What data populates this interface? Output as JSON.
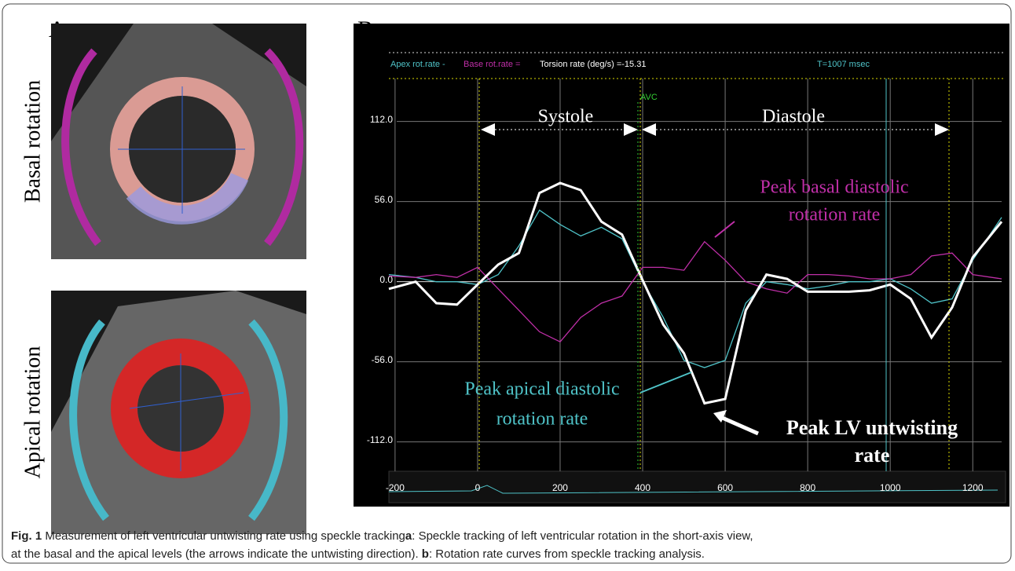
{
  "panel_a": {
    "label": "A",
    "top_label": "Basal rotation",
    "bottom_label": "Apical rotation"
  },
  "chart_data": {
    "type": "line",
    "label": "B",
    "header": {
      "apex": "Apex rot.rate -",
      "base": "Base rot.rate =",
      "torsion": "Torsion rate (deg/s) =-15.31",
      "time": "T=1007 msec"
    },
    "phases": {
      "systole": "Systole",
      "diastole": "Diastole",
      "avc": "AVC"
    },
    "annotations": {
      "basal": [
        "Peak basal diastolic",
        "rotation rate"
      ],
      "apical": [
        "Peak apical diastolic",
        "rotation rate"
      ],
      "untwisting": [
        "Peak LV untwisting",
        "rate"
      ]
    },
    "x": [
      -215,
      -150,
      -100,
      -50,
      0,
      50,
      100,
      150,
      200,
      250,
      300,
      350,
      400,
      450,
      500,
      550,
      600,
      650,
      700,
      750,
      800,
      850,
      900,
      950,
      1000,
      1050,
      1100,
      1150,
      1200,
      1270
    ],
    "xlim": [
      -215,
      1270
    ],
    "xticks": [
      -200,
      0,
      200,
      400,
      600,
      800,
      1000,
      1200
    ],
    "ylim": [
      -127,
      142
    ],
    "yticks": [
      {
        "value": 112,
        "label": "112.0"
      },
      {
        "value": 56,
        "label": "56.0"
      },
      {
        "value": 0,
        "label": "0.0"
      },
      {
        "value": -56,
        "label": "-56.0"
      },
      {
        "value": -112,
        "label": "-112.0"
      }
    ],
    "grid": true,
    "series": [
      {
        "name": "Apex rot.rate -",
        "color": "#4fc3c8",
        "values": [
          5,
          3,
          0,
          0,
          -2,
          5,
          25,
          50,
          40,
          32,
          38,
          30,
          0,
          -25,
          -55,
          -60,
          -55,
          -15,
          0,
          -2,
          -5,
          -3,
          0,
          0,
          2,
          -5,
          -15,
          -12,
          15,
          45
        ]
      },
      {
        "name": "Base rot.rate =",
        "color": "#c02fa8",
        "values": [
          4,
          3,
          5,
          3,
          10,
          -5,
          -20,
          -35,
          -42,
          -25,
          -15,
          -10,
          10,
          10,
          8,
          28,
          15,
          0,
          -5,
          -8,
          5,
          5,
          4,
          2,
          2,
          5,
          18,
          20,
          5,
          2
        ]
      },
      {
        "name": "Torsion rate (deg/s) =-15.31",
        "color": "#ffffff",
        "values": [
          -5,
          0,
          -15,
          -16,
          -2,
          12,
          20,
          62,
          69,
          64,
          42,
          33,
          1,
          -30,
          -50,
          -85,
          -82,
          -20,
          5,
          2,
          -7,
          -7,
          -7,
          -6,
          -2,
          -12,
          -39,
          -18,
          17,
          42
        ]
      }
    ]
  },
  "caption": {
    "label": "Fig. 1",
    "text1": " Measurement of left ventricular untwisting rate using speckle tracking",
    "a": "a",
    "text2": ": Speckle tracking of left ventricular rotation in the short-axis view,",
    "text3": "at the basal and the apical levels (the arrows indicate the untwisting direction). ",
    "b": "b",
    "text4": ": Rotation rate curves from speckle tracking analysis."
  }
}
